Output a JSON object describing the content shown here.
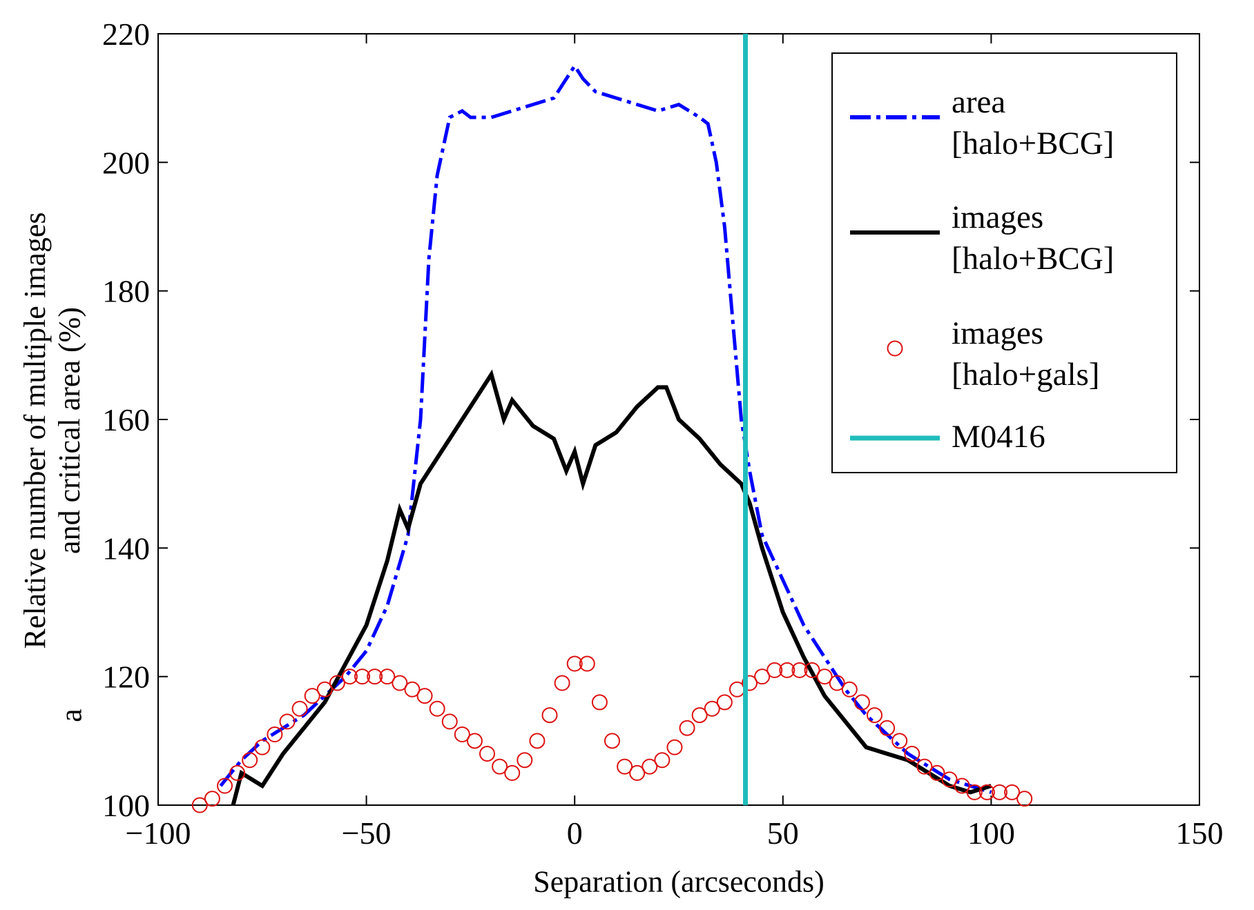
{
  "chart_data": {
    "type": "line",
    "xlabel": "Separation (arcseconds)",
    "ylabel": "Relative number of multiple images\nand critical area (%)",
    "annotation": "a",
    "xlim": [
      -100,
      150
    ],
    "ylim": [
      100,
      220
    ],
    "xticks": [
      {
        "value": -100,
        "label": "−100"
      },
      {
        "value": -50,
        "label": "−50"
      },
      0,
      50,
      100,
      150
    ],
    "yticks": [
      100,
      120,
      140,
      160,
      180,
      200,
      220
    ],
    "grid": false,
    "legend": "upper right",
    "series": [
      {
        "name": "area\n[halo+BCG]",
        "color": "#0000ff",
        "style": "dash-dot",
        "x": [
          -85,
          -80,
          -75,
          -70,
          -65,
          -60,
          -55,
          -50,
          -45,
          -40,
          -37,
          -35,
          -33,
          -30,
          -27,
          -25,
          -20,
          -15,
          -10,
          -5,
          0,
          2,
          5,
          10,
          15,
          20,
          25,
          30,
          32,
          34,
          36,
          38,
          40,
          42,
          45,
          50,
          55,
          60,
          65,
          70,
          75,
          80,
          85,
          90,
          95,
          100
        ],
        "values": [
          103,
          107,
          110,
          112,
          114,
          117,
          120,
          124,
          131,
          142,
          160,
          185,
          198,
          207,
          208,
          207,
          207,
          208,
          209,
          210,
          215,
          213,
          211,
          210,
          209,
          208,
          209,
          207,
          206,
          200,
          190,
          175,
          160,
          152,
          142,
          135,
          128,
          123,
          118,
          114,
          111,
          108,
          106,
          104,
          103,
          102
        ]
      },
      {
        "name": "images\n[halo+BCG]",
        "color": "#000000",
        "style": "solid",
        "x": [
          -82,
          -80,
          -75,
          -70,
          -65,
          -60,
          -55,
          -50,
          -45,
          -42,
          -40,
          -37,
          -35,
          -30,
          -27,
          -25,
          -22,
          -20,
          -17,
          -15,
          -10,
          -5,
          -2,
          0,
          2,
          5,
          10,
          15,
          20,
          22,
          25,
          30,
          35,
          40,
          42,
          45,
          50,
          55,
          60,
          65,
          70,
          75,
          80,
          85,
          90,
          95,
          100
        ],
        "values": [
          100,
          105,
          103,
          108,
          112,
          116,
          122,
          128,
          138,
          146,
          143,
          150,
          152,
          157,
          160,
          162,
          165,
          167,
          160,
          163,
          159,
          157,
          152,
          155,
          150,
          156,
          158,
          162,
          165,
          165,
          160,
          157,
          153,
          150,
          147,
          140,
          130,
          123,
          117,
          113,
          109,
          108,
          107,
          105,
          103,
          102,
          103
        ]
      },
      {
        "name": "images\n[halo+gals]",
        "color": "#dd1111",
        "style": "circle",
        "x": [
          -90,
          -87,
          -84,
          -81,
          -78,
          -75,
          -72,
          -69,
          -66,
          -63,
          -60,
          -57,
          -54,
          -51,
          -48,
          -45,
          -42,
          -39,
          -36,
          -33,
          -30,
          -27,
          -24,
          -21,
          -18,
          -15,
          -12,
          -9,
          -6,
          -3,
          0,
          3,
          6,
          9,
          12,
          15,
          18,
          21,
          24,
          27,
          30,
          33,
          36,
          39,
          42,
          45,
          48,
          51,
          54,
          57,
          60,
          63,
          66,
          69,
          72,
          75,
          78,
          81,
          84,
          87,
          90,
          93,
          96,
          99,
          102,
          105,
          108
        ],
        "values": [
          100,
          101,
          103,
          105,
          107,
          109,
          111,
          113,
          115,
          117,
          118,
          119,
          120,
          120,
          120,
          120,
          119,
          118,
          117,
          115,
          113,
          111,
          110,
          108,
          106,
          105,
          107,
          110,
          114,
          119,
          122,
          122,
          116,
          110,
          106,
          105,
          106,
          107,
          109,
          112,
          114,
          115,
          116,
          118,
          119,
          120,
          121,
          121,
          121,
          121,
          120,
          119,
          118,
          116,
          114,
          112,
          110,
          108,
          106,
          105,
          104,
          103,
          102,
          102,
          102,
          102,
          101
        ]
      },
      {
        "name": "M0416",
        "color": "#20bcbc",
        "style": "vline",
        "x": 41
      }
    ]
  }
}
